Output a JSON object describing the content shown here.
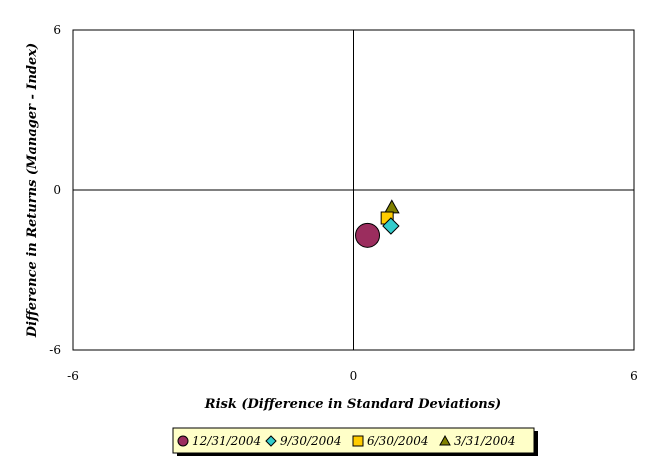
{
  "chart_data": {
    "type": "scatter",
    "title": "",
    "xlabel": "Risk (Difference in Standard Deviations)",
    "ylabel": "Difference in Returns (Manager - Index)",
    "xlim": [
      -6,
      6
    ],
    "ylim": [
      -6,
      6
    ],
    "xticks": [
      "-6",
      "0",
      "6"
    ],
    "yticks": [
      "6",
      "0",
      "-6"
    ],
    "grid": false,
    "legend_position": "bottom",
    "series": [
      {
        "name": "12/31/2004",
        "marker": "circle",
        "color": "#9b2d5e",
        "x": 0.3,
        "y": -1.7
      },
      {
        "name": "9/30/2004",
        "marker": "diamond",
        "color": "#33cccc",
        "x": 0.8,
        "y": -1.35
      },
      {
        "name": "6/30/2004",
        "marker": "square",
        "color": "#ffcc00",
        "x": 0.72,
        "y": -1.05
      },
      {
        "name": "3/31/2004",
        "marker": "triangle",
        "color": "#808000",
        "x": 0.82,
        "y": -0.65
      }
    ]
  }
}
